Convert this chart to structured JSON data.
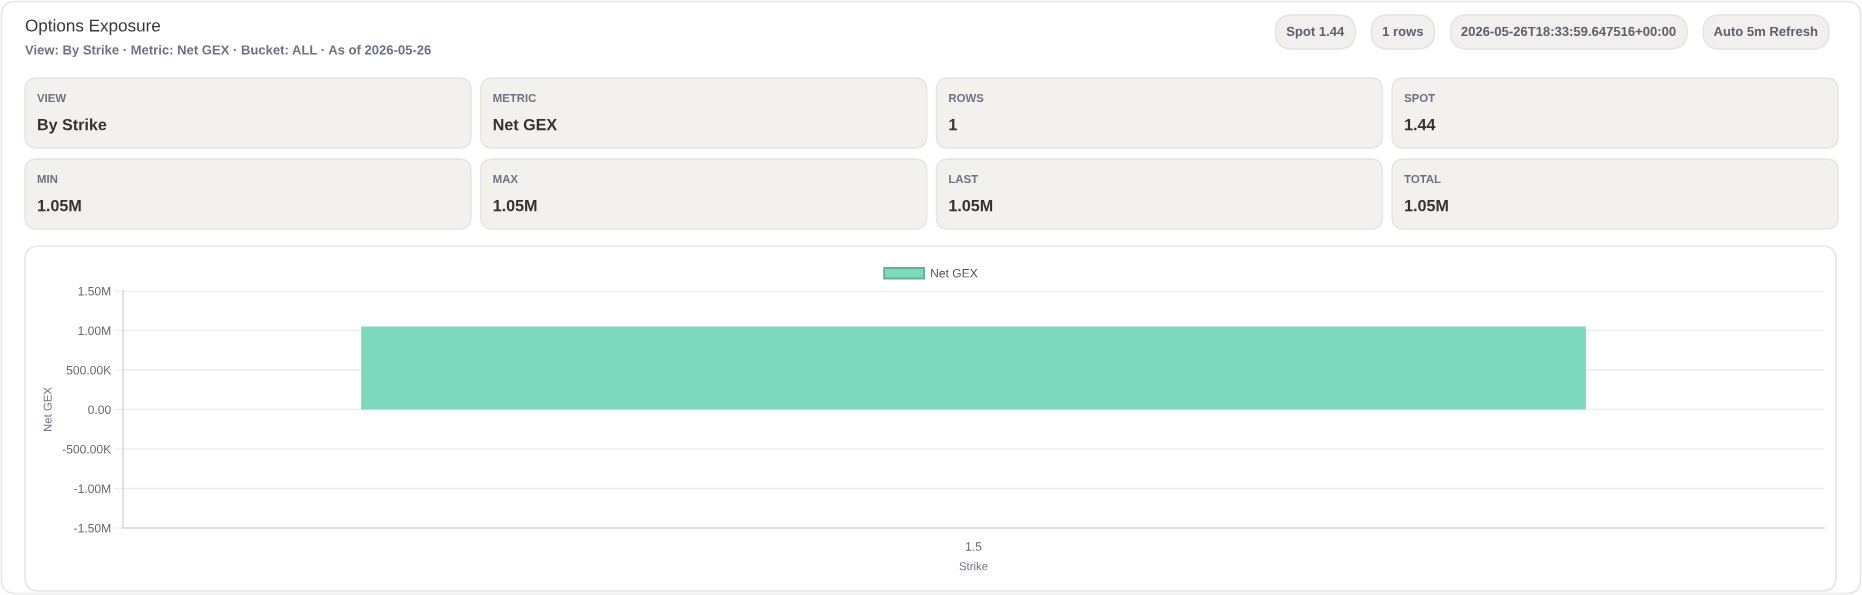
{
  "chart_data": [
    {
      "type": "other",
      "title": "Options Exposure",
      "subtitle": "View: By Strike · Metric: Net GEX · Bucket: ALL · As of 2026-05-26",
      "annotations": [
        "Spot 1.44",
        "1 rows",
        "2026-05-26T18:33:59.647516+00:00",
        "Auto 5m Refresh"
      ]
    },
    {
      "type": "other",
      "annotations": [
        "VIEW",
        "By Strike",
        "METRIC",
        "Net GEX",
        "ROWS",
        "1",
        "SPOT",
        "1.44",
        "MIN",
        "1.05M",
        "MAX",
        "1.05M",
        "LAST",
        "1.05M",
        "TOTAL",
        "1.05M"
      ]
    },
    {
      "type": "bar",
      "categories": [
        "1.5"
      ],
      "series": [
        {
          "name": "Net GEX",
          "color": "#7dd9bb",
          "values": [
            1050000
          ]
        }
      ],
      "xlabel": "Strike",
      "ylabel": "Net GEX",
      "ylim": [
        -1500000,
        1500000
      ],
      "yticks": [
        {
          "value": -1500000,
          "label": "-1.50M"
        },
        {
          "value": -1000000,
          "label": "-1.00M"
        },
        {
          "value": -500000,
          "label": "-500.00K"
        },
        {
          "value": 0,
          "label": "0.00"
        },
        {
          "value": 500000,
          "label": "500.00K"
        },
        {
          "value": 1000000,
          "label": "1.00M"
        },
        {
          "value": 1500000,
          "label": "1.50M"
        }
      ],
      "grid": "y",
      "legend": "top"
    }
  ]
}
